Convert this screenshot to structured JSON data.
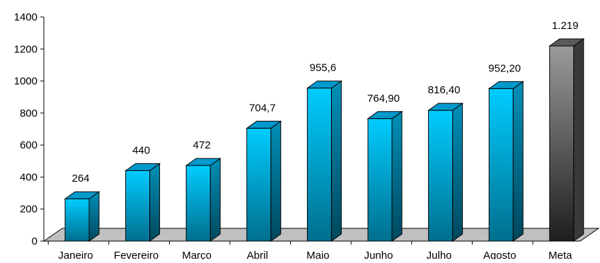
{
  "chart_data": {
    "type": "bar",
    "title": "",
    "xlabel": "",
    "ylabel": "",
    "ylim": [
      0,
      1400
    ],
    "yticks": [
      0,
      200,
      400,
      600,
      800,
      1000,
      1200,
      1400
    ],
    "ytick_labels": [
      "0",
      "200",
      "400",
      "600",
      "800",
      "1000",
      "1200",
      "1400"
    ],
    "categories": [
      "Janeiro",
      "Fevereiro",
      "Março",
      "Abril",
      "Maio",
      "Junho",
      "Julho",
      "Agosto",
      "Meta"
    ],
    "values": [
      264,
      440,
      472,
      704.7,
      955.6,
      764.9,
      816.4,
      952.2,
      1219
    ],
    "data_labels": [
      "264",
      "440",
      "472",
      "704,7",
      "955,6",
      "764,90",
      "816,40",
      "952,20",
      "1.219"
    ],
    "grid": false,
    "legend": "none",
    "style": "3d-column",
    "colors": {
      "bar_front_top": "#00CCFF",
      "bar_front_bottom": "#006F8E",
      "bar_side_top": "#0090B8",
      "bar_side_bottom": "#00485E",
      "bar_top": "#0099CC",
      "highlight_front_top": "#9A9A9A",
      "highlight_front_bottom": "#1E1E1E",
      "highlight_side": "#3A3A3A",
      "highlight_top": "#5A5A5A",
      "floor": "#C0C0C0"
    },
    "highlight_index": 8
  }
}
